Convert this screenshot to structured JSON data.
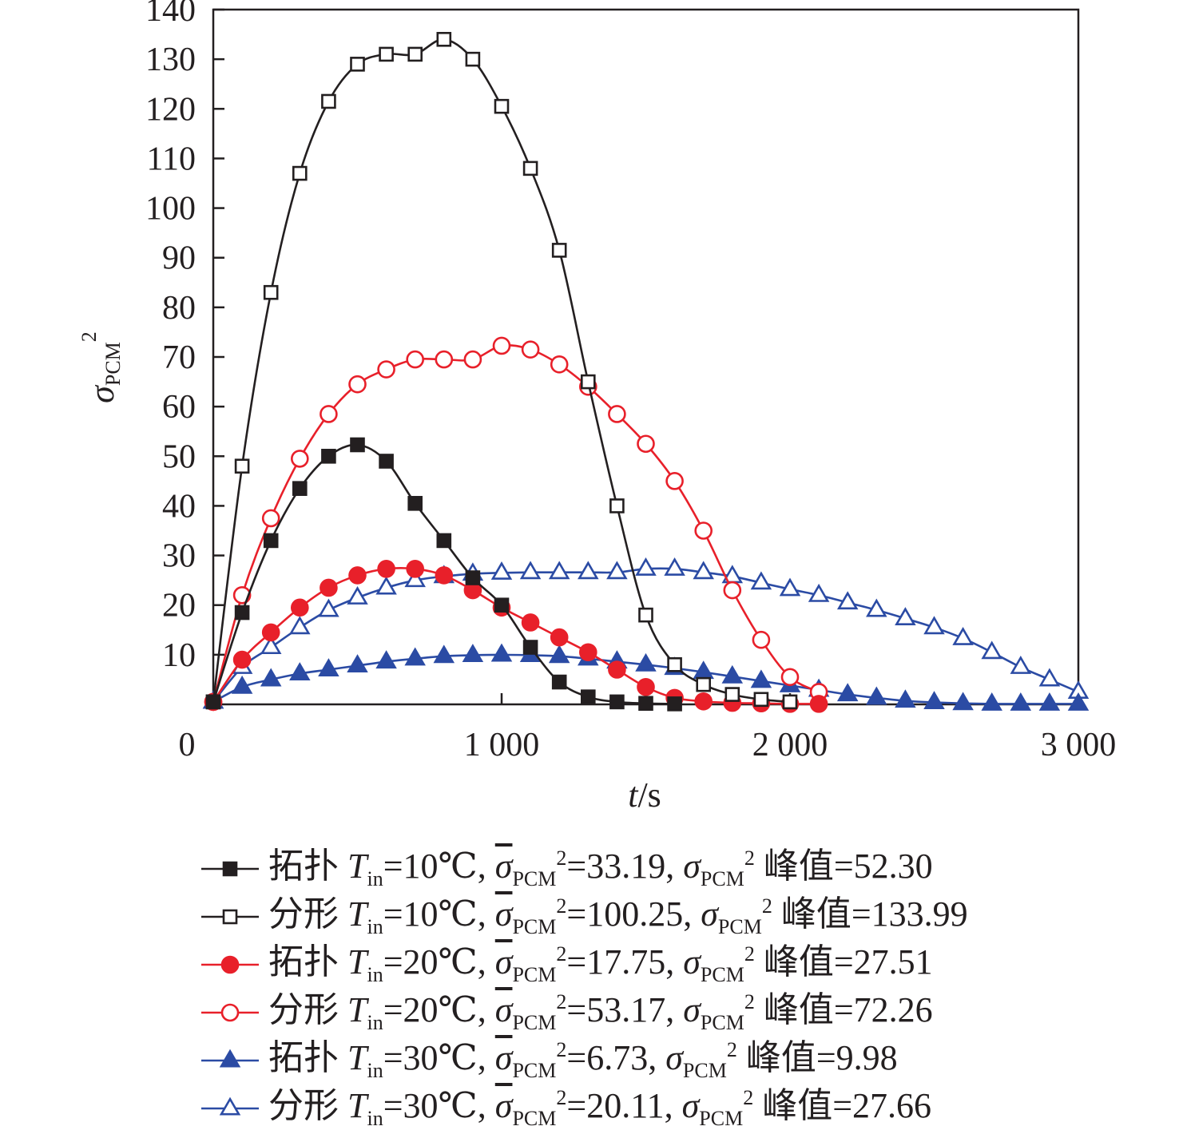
{
  "chart_data": {
    "type": "line",
    "xlabel": "t/s",
    "ylabel": "σPCM²",
    "xlim": [
      0,
      3000
    ],
    "ylim": [
      0,
      140
    ],
    "x_ticks": [
      "0",
      "1 000",
      "2 000",
      "3 000"
    ],
    "y_ticks": [
      "10",
      "20",
      "30",
      "40",
      "50",
      "60",
      "70",
      "80",
      "90",
      "100",
      "110",
      "120",
      "130",
      "140"
    ],
    "grid": false,
    "legend_position": "bottom",
    "series": [
      {
        "name": "拓扑 Tin=10℃, σ̄PCM²=33.19, σPCM² 峰值=52.30",
        "color": "#231f20",
        "marker": "filled-square",
        "x": [
          0,
          100,
          200,
          300,
          400,
          500,
          600,
          700,
          800,
          900,
          1000,
          1100,
          1200,
          1300,
          1400,
          1500,
          1600
        ],
        "y": [
          0.5,
          18.5,
          33,
          43.5,
          50,
          52.3,
          49,
          40.5,
          33,
          25.5,
          20,
          11.5,
          4.5,
          1.5,
          0.5,
          0.2,
          0.1
        ]
      },
      {
        "name": "分形 Tin=10℃, σ̄PCM²=100.25, σPCM² 峰值=133.99",
        "color": "#231f20",
        "marker": "open-square",
        "x": [
          0,
          100,
          200,
          300,
          400,
          500,
          600,
          700,
          800,
          900,
          1000,
          1100,
          1200,
          1300,
          1400,
          1500,
          1600,
          1700,
          1800,
          1900,
          2000
        ],
        "y": [
          0.5,
          48,
          83,
          107,
          121.5,
          129,
          131,
          131,
          134,
          130,
          120.5,
          108,
          91.5,
          65,
          40,
          18,
          8,
          4,
          2,
          1,
          0.5
        ]
      },
      {
        "name": "拓扑 Tin=20℃, σ̄PCM²=17.75, σPCM² 峰值=27.51",
        "color": "#e8202a",
        "marker": "filled-circle",
        "x": [
          0,
          100,
          200,
          300,
          400,
          500,
          600,
          700,
          800,
          900,
          1000,
          1100,
          1200,
          1300,
          1400,
          1500,
          1600,
          1700,
          1800,
          1900,
          2000,
          2100
        ],
        "y": [
          0.5,
          9,
          14.5,
          19.5,
          23.5,
          26,
          27.3,
          27.3,
          26,
          23,
          19.5,
          16.5,
          13.5,
          10.5,
          7,
          3.5,
          1.3,
          0.6,
          0.3,
          0.2,
          0.1,
          0.1
        ]
      },
      {
        "name": "分形 Tin=20℃, σ̄PCM²=53.17, σPCM² 峰值=72.26",
        "color": "#e8202a",
        "marker": "open-circle",
        "x": [
          0,
          100,
          200,
          300,
          400,
          500,
          600,
          700,
          800,
          900,
          1000,
          1100,
          1200,
          1300,
          1400,
          1500,
          1600,
          1700,
          1800,
          1900,
          2000,
          2100
        ],
        "y": [
          0.5,
          22,
          37.5,
          49.5,
          58.5,
          64.5,
          67.5,
          69.5,
          69.5,
          69.5,
          72.26,
          71.5,
          68.5,
          64,
          58.5,
          52.5,
          45,
          35,
          23,
          13,
          5.5,
          2.5
        ]
      },
      {
        "name": "拓扑 Tin=30℃, σ̄PCM²=6.73, σPCM² 峰值=9.98",
        "color": "#2b4ba4",
        "marker": "filled-triangle",
        "x": [
          0,
          100,
          200,
          300,
          400,
          500,
          600,
          700,
          800,
          900,
          1000,
          1100,
          1200,
          1300,
          1400,
          1500,
          1600,
          1700,
          1800,
          1900,
          2000,
          2100,
          2200,
          2300,
          2400,
          2500,
          2600,
          2700,
          2800,
          2900,
          3000
        ],
        "y": [
          0.5,
          3.5,
          5,
          6.2,
          7,
          7.8,
          8.6,
          9.2,
          9.7,
          9.9,
          9.98,
          9.9,
          9.7,
          9.2,
          8.6,
          8,
          7.3,
          6.5,
          5.6,
          4.7,
          3.8,
          2.9,
          2,
          1.3,
          0.7,
          0.4,
          0.2,
          0.1,
          0.1,
          0.1,
          0.1
        ]
      },
      {
        "name": "分形 Tin=30℃, σ̄PCM²=20.11, σPCM² 峰值=27.66",
        "color": "#2b4ba4",
        "marker": "open-triangle",
        "x": [
          0,
          100,
          200,
          300,
          400,
          500,
          600,
          700,
          800,
          900,
          1000,
          1100,
          1200,
          1300,
          1400,
          1500,
          1600,
          1700,
          1800,
          1900,
          2000,
          2100,
          2200,
          2300,
          2400,
          2500,
          2600,
          2700,
          2800,
          2900,
          3000
        ],
        "y": [
          0.5,
          7.5,
          11.5,
          15.5,
          19,
          21.5,
          23.5,
          25,
          25.8,
          26.3,
          26.5,
          26.6,
          26.6,
          26.6,
          26.6,
          27.3,
          27.3,
          26.6,
          25.8,
          24.5,
          23.2,
          22,
          20.5,
          19,
          17.3,
          15.5,
          13.3,
          10.5,
          7.5,
          5,
          2.5
        ]
      }
    ]
  },
  "legend": [
    {
      "prefix": "拓扑",
      "tin": "10℃",
      "mean": "33.19",
      "peak": "52.30"
    },
    {
      "prefix": "分形",
      "tin": "10℃",
      "mean": "100.25",
      "peak": "133.99"
    },
    {
      "prefix": "拓扑",
      "tin": "20℃",
      "mean": "17.75",
      "peak": "27.51"
    },
    {
      "prefix": "分形",
      "tin": "20℃",
      "mean": "53.17",
      "peak": "72.26"
    },
    {
      "prefix": "拓扑",
      "tin": "30℃",
      "mean": "6.73",
      "peak": "9.98"
    },
    {
      "prefix": "分形",
      "tin": "30℃",
      "mean": "20.11",
      "peak": "27.66"
    }
  ],
  "legend_text": {
    "T": "T",
    "in": "in",
    "sigma": "σ",
    "PCM": "PCM",
    "sq": "2",
    "peak_word": "峰值",
    "eq": "=",
    "comma": ", "
  }
}
